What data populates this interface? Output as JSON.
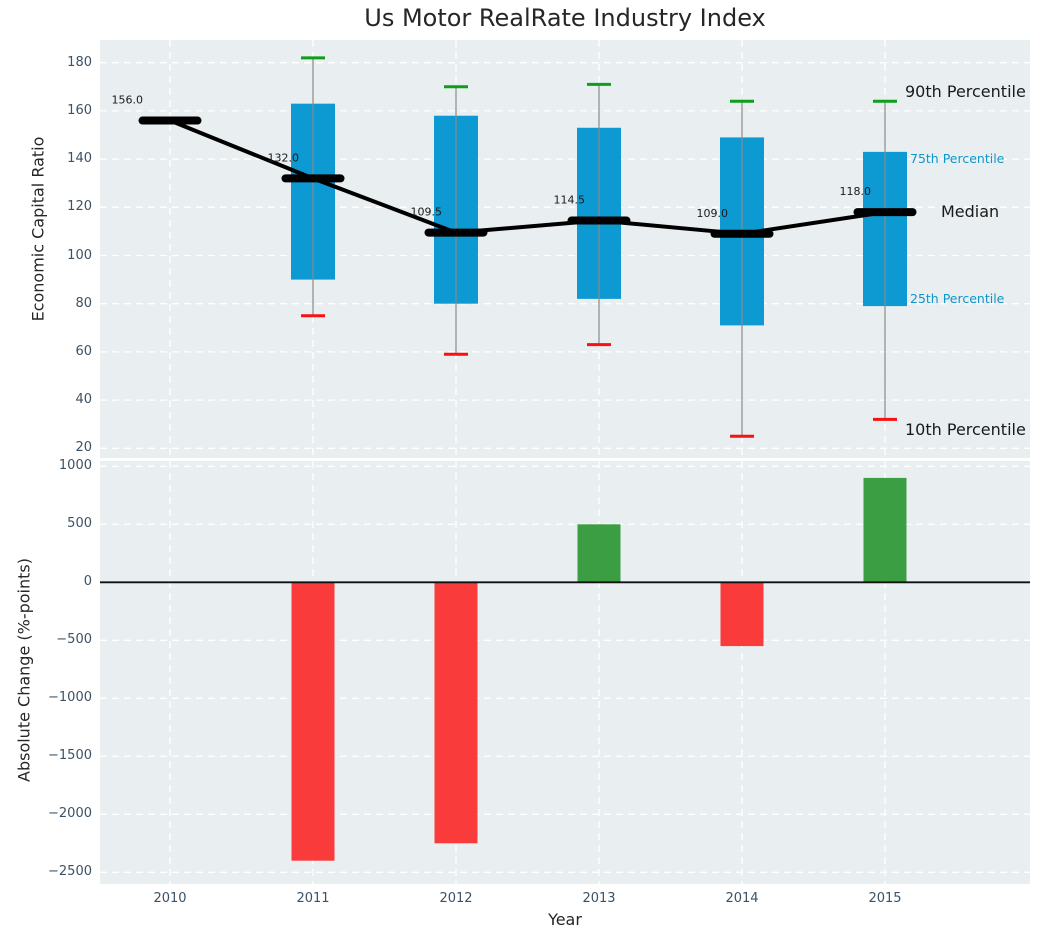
{
  "title": "Us Motor RealRate Industry Index",
  "colors": {
    "panel_background": "#e9eef0",
    "grid": "#ffffff",
    "box_fill": "#0d9ad3",
    "whisker": "#8a8a8a",
    "median": "#000000",
    "p90_cap": "#0f9d1c",
    "p10_cap": "#f81111",
    "bar_positive": "#3c9e42",
    "bar_negative": "#f93b3b",
    "zero_line": "#111111",
    "tick_text": "#3b5266",
    "text": "#262626",
    "percentile_label_blue": "#0f96cd"
  },
  "chart_data": [
    {
      "type": "box",
      "title": "Us Motor RealRate Industry Index",
      "ylabel": "Economic Capital Ratio",
      "xlabel": "Year",
      "categories": [
        "2010",
        "2011",
        "2012",
        "2013",
        "2014",
        "2015"
      ],
      "yticks": [
        180,
        160,
        140,
        120,
        100,
        80,
        60,
        40,
        20
      ],
      "ylim": [
        17,
        190
      ],
      "grid": true,
      "legend_position": "right-annotations",
      "percentile_labels": {
        "p90": "90th Percentile",
        "p75": "75th Percentile",
        "median": "Median",
        "p25": "25th Percentile",
        "p10": "10th Percentile"
      },
      "series": [
        {
          "year": "2010",
          "p10": null,
          "p25": null,
          "median": 156.0,
          "p75": null,
          "p90": null,
          "median_label": "156.0"
        },
        {
          "year": "2011",
          "p10": 75,
          "p25": 90,
          "median": 132.0,
          "p75": 163,
          "p90": 182,
          "median_label": "132.0"
        },
        {
          "year": "2012",
          "p10": 59,
          "p25": 80,
          "median": 109.5,
          "p75": 158,
          "p90": 170,
          "median_label": "109.5"
        },
        {
          "year": "2013",
          "p10": 63,
          "p25": 82,
          "median": 114.5,
          "p75": 153,
          "p90": 171,
          "median_label": "114.5"
        },
        {
          "year": "2014",
          "p10": 25,
          "p25": 71,
          "median": 109.0,
          "p75": 149,
          "p90": 164,
          "median_label": "109.0"
        },
        {
          "year": "2015",
          "p10": 32,
          "p25": 79,
          "median": 118.0,
          "p75": 143,
          "p90": 164,
          "median_label": "118.0"
        }
      ]
    },
    {
      "type": "bar",
      "ylabel": "Absolute Change (%-points)",
      "xlabel": "Year",
      "categories": [
        "2010",
        "2011",
        "2012",
        "2013",
        "2014",
        "2015"
      ],
      "values": [
        null,
        -2400,
        -2250,
        500,
        -550,
        900
      ],
      "yticks": [
        1000,
        500,
        0,
        -500,
        -1000,
        -1500,
        -2000,
        -2500
      ],
      "ylim": [
        -2600,
        1080
      ],
      "grid": true
    }
  ]
}
